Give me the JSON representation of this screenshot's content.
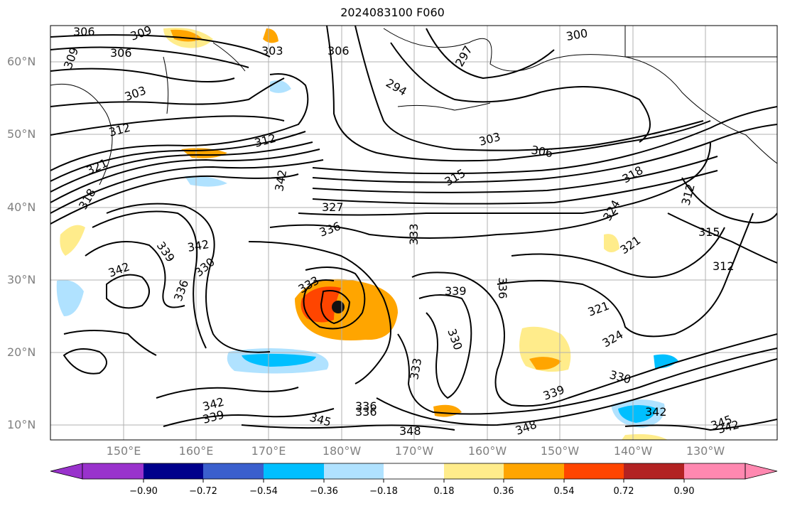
{
  "title": "2024083100 F060",
  "lat_labels": [
    "60°N",
    "50°N",
    "40°N",
    "30°N",
    "20°N",
    "10°N"
  ],
  "lon_labels": [
    "150°E",
    "160°E",
    "170°E",
    "180°W",
    "170°W",
    "160°W",
    "150°W",
    "140°W",
    "130°W"
  ],
  "colorbar": {
    "tick_labels": [
      "−0.90",
      "−0.72",
      "−0.54",
      "−0.36",
      "−0.18",
      "0.18",
      "0.36",
      "0.54",
      "0.72",
      "0.90"
    ],
    "colors": [
      "#9932cc",
      "#00008b",
      "#3a5fcd",
      "#00bfff",
      "#b0e2ff",
      "#ffffff",
      "#ffec8b",
      "#ffa500",
      "#ff4500",
      "#b22222",
      "#ff88b0",
      "#ff88b0"
    ]
  },
  "contour_labels": [
    "306",
    "309",
    "303",
    "306",
    "300",
    "297",
    "294",
    "309",
    "306",
    "303",
    "312",
    "312",
    "321",
    "342",
    "318",
    "303",
    "306",
    "315",
    "318",
    "327",
    "336",
    "333",
    "324",
    "312",
    "315",
    "339",
    "342",
    "342",
    "330",
    "336",
    "321",
    "312",
    "333",
    "339",
    "336",
    "330",
    "321",
    "324",
    "333",
    "336",
    "339",
    "330",
    "342",
    "339",
    "345",
    "336",
    "348",
    "348",
    "342",
    "345",
    "342"
  ]
}
